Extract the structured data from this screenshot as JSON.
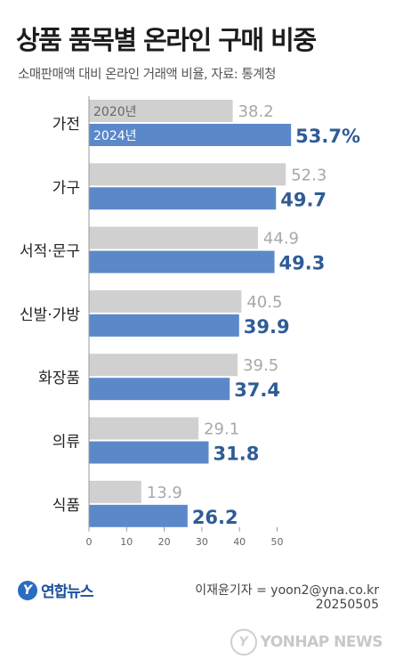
{
  "header": {
    "title": "상품 품목별 온라인 구매 비중",
    "subtitle": "소매판매액 대비 온라인 거래액 비율, 자료: 통계청"
  },
  "chart_data": {
    "type": "bar",
    "orientation": "horizontal",
    "title": "상품 품목별 온라인 구매 비중",
    "subtitle": "소매판매액 대비 온라인 거래액 비율, 자료: 통계청",
    "categories": [
      "가전",
      "가구",
      "서적·문구",
      "신발·가방",
      "화장품",
      "의류",
      "식품"
    ],
    "series": [
      {
        "name": "2020년",
        "values": [
          38.2,
          52.3,
          44.9,
          40.5,
          39.5,
          29.1,
          13.9
        ],
        "color": "#d0d0d0",
        "label_color": "#a8a8a8"
      },
      {
        "name": "2024년",
        "values": [
          53.7,
          49.7,
          49.3,
          39.9,
          37.4,
          31.8,
          26.2
        ],
        "color": "#5b88c9",
        "label_color": "#2f5c97"
      }
    ],
    "first_value_suffix": "%",
    "xlim": [
      0,
      55
    ],
    "xticks": [
      0,
      10,
      20,
      30,
      40,
      50
    ],
    "grid": false,
    "legend": "inside-first-bars"
  },
  "footer": {
    "logo_mark": "Y",
    "logo_text": "연합뉴스",
    "credit": "이재윤기자 = yoon2@yna.co.kr",
    "date": "20250505",
    "watermark_text": "YONHAP NEWS"
  }
}
